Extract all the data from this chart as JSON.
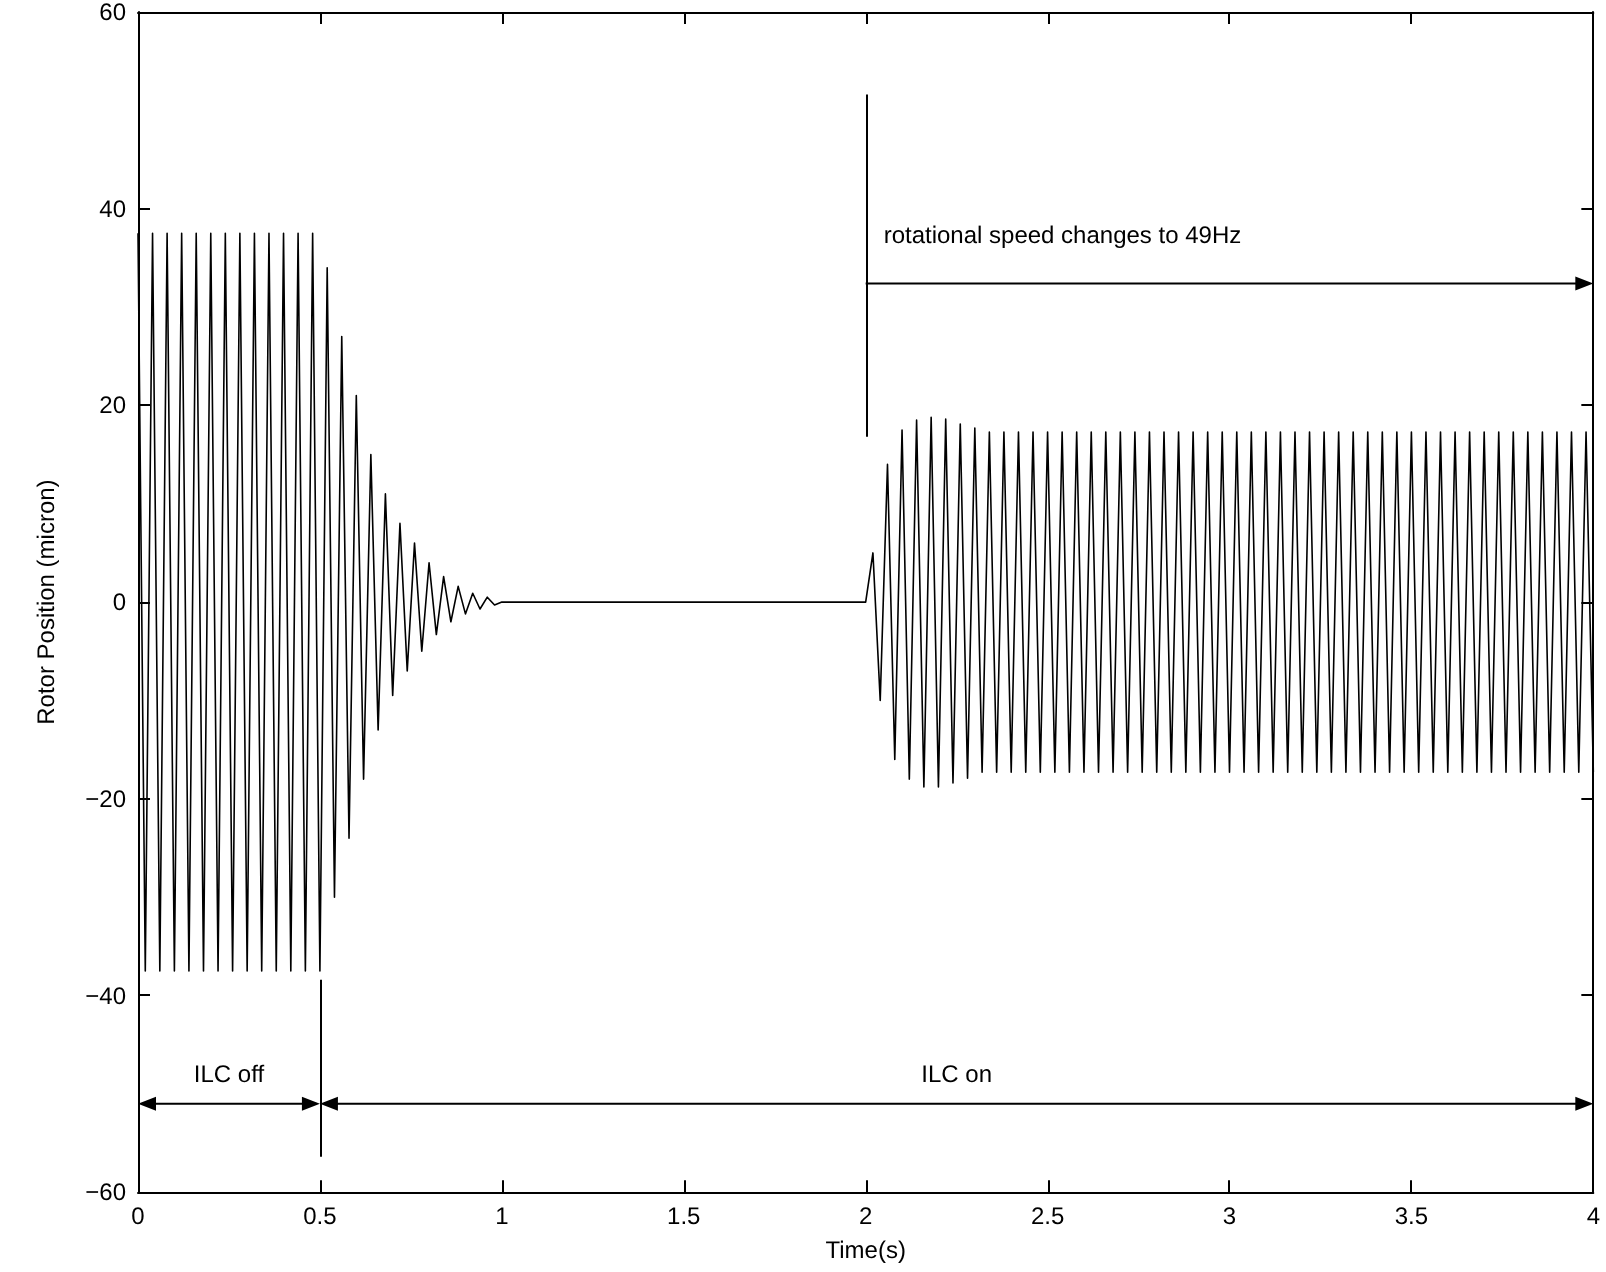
{
  "chart_data": {
    "type": "line",
    "xlabel": "Time(s)",
    "ylabel": "Rotor Position (micron)",
    "xlim": [
      0,
      4
    ],
    "xticks": [
      0,
      0.5,
      1,
      1.5,
      2,
      2.5,
      3,
      3.5,
      4
    ],
    "ylim": [
      -60,
      60
    ],
    "yticks": [
      -60,
      -40,
      -20,
      0,
      20,
      40,
      60
    ],
    "grid": false,
    "marker": "none",
    "line_style": "solid",
    "series": [
      {
        "color": "#000000",
        "x": [
          0,
          0.02,
          0.04,
          0.06,
          0.08,
          0.1,
          0.12,
          0.14,
          0.16,
          0.18,
          0.2,
          0.22,
          0.24,
          0.26,
          0.28,
          0.3,
          0.32,
          0.34,
          0.36,
          0.38,
          0.4,
          0.42,
          0.44,
          0.46,
          0.48,
          0.5,
          0.52,
          0.54,
          0.56,
          0.58,
          0.6,
          0.62,
          0.64,
          0.66,
          0.68,
          0.7,
          0.72,
          0.74,
          0.76,
          0.78,
          0.8,
          0.82,
          0.84,
          0.86,
          0.88,
          0.9,
          0.92,
          0.94,
          0.96,
          0.98,
          1.0,
          2.0,
          2.02,
          2.04,
          2.06,
          2.08,
          2.1,
          2.12,
          2.14,
          2.16,
          2.18,
          2.2,
          2.22,
          2.24,
          2.26,
          2.28,
          2.3,
          2.32,
          2.34,
          2.36,
          2.38,
          2.4,
          2.42,
          2.44,
          2.46,
          2.48,
          2.5,
          2.52,
          2.54,
          2.56,
          2.58,
          2.6,
          2.62,
          2.64,
          2.66,
          2.68,
          2.7,
          2.72,
          2.74,
          2.76,
          2.78,
          2.8,
          2.82,
          2.84,
          2.86,
          2.88,
          2.9,
          2.92,
          2.94,
          2.96,
          2.98,
          3.0,
          3.02,
          3.04,
          3.06,
          3.08,
          3.1,
          3.12,
          3.14,
          3.16,
          3.18,
          3.2,
          3.22,
          3.24,
          3.26,
          3.28,
          3.3,
          3.32,
          3.34,
          3.36,
          3.38,
          3.4,
          3.42,
          3.44,
          3.46,
          3.48,
          3.5,
          3.52,
          3.54,
          3.56,
          3.58,
          3.6,
          3.62,
          3.64,
          3.66,
          3.68,
          3.7,
          3.72,
          3.74,
          3.76,
          3.78,
          3.8,
          3.82,
          3.84,
          3.86,
          3.88,
          3.9,
          3.92,
          3.94,
          3.96,
          3.98,
          4.0
        ],
        "values": [
          37.5,
          -37.5,
          37.5,
          -37.5,
          37.5,
          -37.5,
          37.5,
          -37.5,
          37.5,
          -37.5,
          37.5,
          -37.5,
          37.5,
          -37.5,
          37.5,
          -37.5,
          37.5,
          -37.5,
          37.5,
          -37.5,
          37.5,
          -37.5,
          37.5,
          -37.5,
          37.5,
          -37.5,
          34,
          -30,
          27,
          -24,
          21,
          -18,
          15,
          -13,
          11,
          -9.5,
          8,
          -7,
          6,
          -5,
          4,
          -3.3,
          2.6,
          -2,
          1.6,
          -1.2,
          0.9,
          -0.7,
          0.5,
          -0.3,
          0,
          0,
          5,
          -10,
          14,
          -16,
          17.5,
          -18,
          18.5,
          -18.8,
          18.8,
          -18.8,
          18.6,
          -18.4,
          18.1,
          -17.9,
          17.7,
          -17.3,
          17.3,
          -17.3,
          17.3,
          -17.3,
          17.3,
          -17.3,
          17.3,
          -17.3,
          17.3,
          -17.3,
          17.3,
          -17.3,
          17.3,
          -17.3,
          17.3,
          -17.3,
          17.3,
          -17.3,
          17.3,
          -17.3,
          17.3,
          -17.3,
          17.3,
          -17.3,
          17.3,
          -17.3,
          17.3,
          -17.3,
          17.3,
          -17.3,
          17.3,
          -17.3,
          17.3,
          -17.3,
          17.3,
          -17.3,
          17.3,
          -17.3,
          17.3,
          -17.3,
          17.3,
          -17.3,
          17.3,
          -17.3,
          17.3,
          -17.3,
          17.3,
          -17.3,
          17.3,
          -17.3,
          17.3,
          -17.3,
          17.3,
          -17.3,
          17.3,
          -17.3,
          17.3,
          -17.3,
          17.3,
          -17.3,
          17.3,
          -17.3,
          17.3,
          -17.3,
          17.3,
          -17.3,
          17.3,
          -17.3,
          17.3,
          -17.3,
          17.3,
          -17.3,
          17.3,
          -17.3,
          17.3,
          -17.3,
          17.3,
          -17.3,
          17.3,
          -17.3,
          17.3,
          -17.3,
          17.3,
          -17.3
        ]
      }
    ],
    "ref_lines": [
      {
        "axis": "x",
        "value": 0.5
      },
      {
        "axis": "x",
        "value": 2,
        "label": "rotational speed changes to 49Hz"
      }
    ],
    "annotations": [
      "ILC off",
      "ILC on"
    ]
  }
}
